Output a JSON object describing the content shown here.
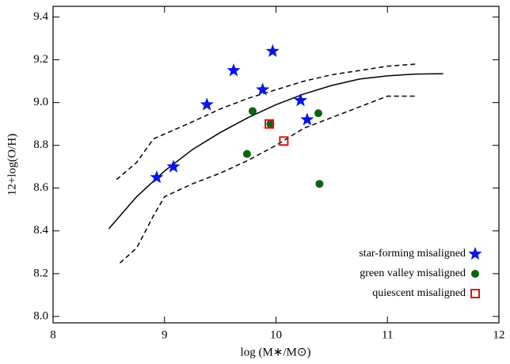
{
  "chart_data": {
    "type": "scatter",
    "xlabel": "log (M∗/M⊙)",
    "ylabel": "12+log(O/H)",
    "xlim": [
      8,
      12
    ],
    "ylim": [
      7.97,
      9.45
    ],
    "xticks": [
      8,
      9,
      10,
      11,
      12
    ],
    "yticks": [
      {
        "value": 8,
        "label": "8.0"
      },
      8.2,
      8.4,
      8.6,
      8.8,
      {
        "value": 9,
        "label": "9.0"
      },
      9.2,
      9.4
    ],
    "legend": "lower right",
    "series": [
      {
        "name": "star-forming misaligned",
        "marker": "star",
        "color": "#0a14e6",
        "x": [
          8.93,
          9.08,
          9.38,
          9.62,
          9.88,
          9.97,
          10.22,
          10.28
        ],
        "values": [
          8.65,
          8.7,
          8.99,
          9.15,
          9.06,
          9.24,
          9.01,
          8.92
        ]
      },
      {
        "name": "green valley misaligned",
        "marker": "circle",
        "color": "#0b6410",
        "x": [
          9.79,
          9.95,
          10.38,
          9.74,
          10.39
        ],
        "values": [
          8.96,
          8.9,
          8.95,
          8.76,
          8.62
        ]
      },
      {
        "name": "quiescent misaligned",
        "marker": "square",
        "color": "#e01010",
        "x": [
          9.94,
          10.07
        ],
        "values": [
          8.9,
          8.82
        ]
      }
    ],
    "lines": [
      {
        "style": "solid",
        "x": [
          8.5,
          8.75,
          9.0,
          9.25,
          9.5,
          9.75,
          10.0,
          10.25,
          10.5,
          10.75,
          11.0,
          11.25,
          11.5
        ],
        "values": [
          8.41,
          8.56,
          8.68,
          8.78,
          8.86,
          8.93,
          8.99,
          9.04,
          9.08,
          9.11,
          9.125,
          9.133,
          9.135
        ]
      },
      {
        "style": "dashed",
        "x": [
          8.57,
          8.75,
          8.9,
          9.25,
          9.5,
          9.75,
          10.0,
          10.25,
          10.5,
          10.75,
          11.0,
          11.25
        ],
        "values": [
          8.64,
          8.72,
          8.83,
          8.91,
          8.97,
          9.02,
          9.06,
          9.1,
          9.13,
          9.15,
          9.17,
          9.18
        ]
      },
      {
        "style": "dashed",
        "x": [
          8.6,
          8.75,
          8.9,
          9.0,
          9.25,
          9.5,
          9.75,
          10.0,
          10.25,
          10.5,
          10.75,
          11.0,
          11.25
        ],
        "values": [
          8.25,
          8.32,
          8.47,
          8.56,
          8.62,
          8.67,
          8.73,
          8.8,
          8.88,
          8.93,
          8.98,
          9.03,
          9.03
        ]
      }
    ]
  }
}
